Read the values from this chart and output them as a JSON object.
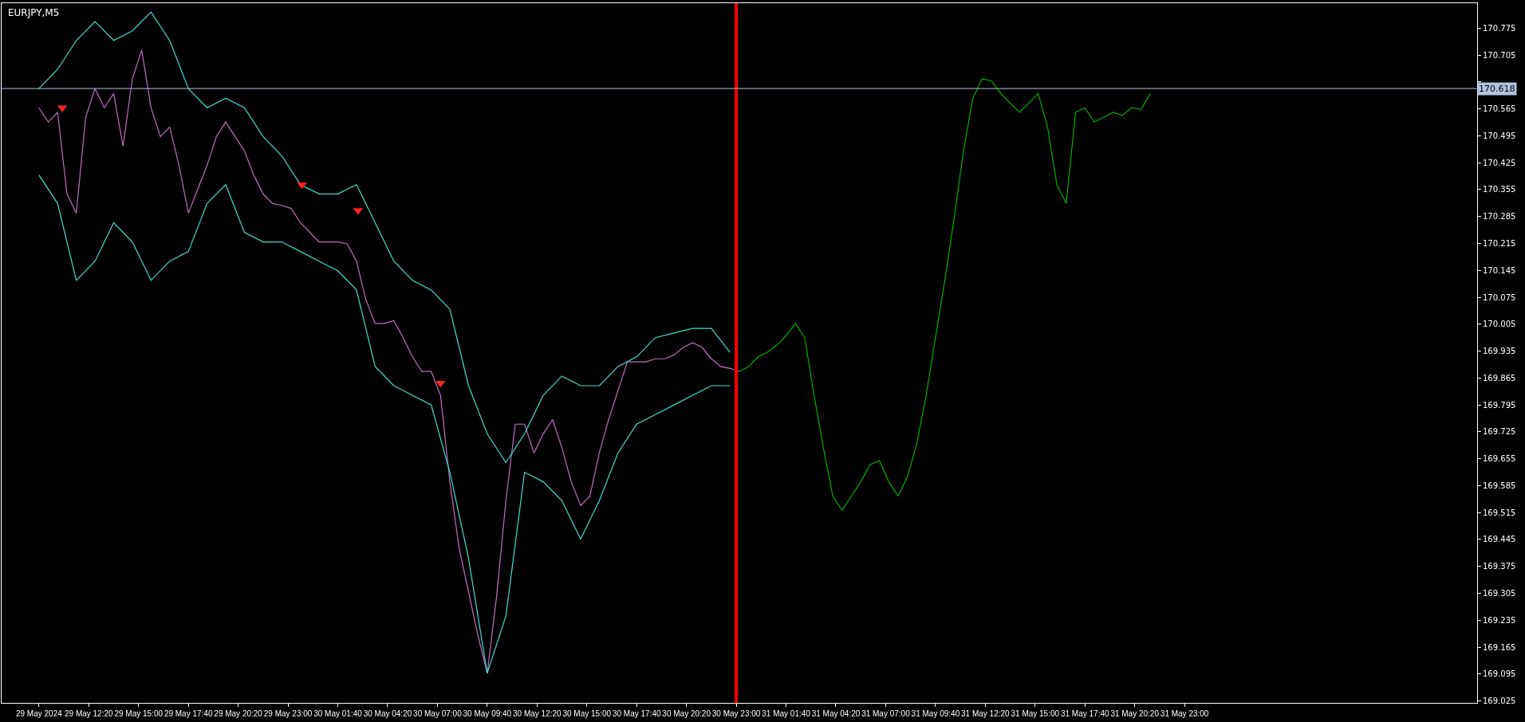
{
  "chart_data": {
    "type": "line",
    "title": "EURJPY,M5",
    "grid": false,
    "xlim": [
      "2024-05-29T07:40",
      "2024-06-01T14:40"
    ],
    "xticks": [
      {
        "value": "2024-05-29T09:40",
        "label": "29 May 2024"
      },
      {
        "value": "2024-05-29T12:20",
        "label": "29 May 12:20"
      },
      {
        "value": "2024-05-29T15:00",
        "label": "29 May 15:00"
      },
      {
        "value": "2024-05-29T17:40",
        "label": "29 May 17:40"
      },
      {
        "value": "2024-05-29T20:20",
        "label": "29 May 20:20"
      },
      {
        "value": "2024-05-29T23:00",
        "label": "29 May 23:00"
      },
      {
        "value": "2024-05-30T01:40",
        "label": "30 May 01:40"
      },
      {
        "value": "2024-05-30T04:20",
        "label": "30 May 04:20"
      },
      {
        "value": "2024-05-30T07:00",
        "label": "30 May 07:00"
      },
      {
        "value": "2024-05-30T09:40",
        "label": "30 May 09:40"
      },
      {
        "value": "2024-05-30T12:20",
        "label": "30 May 12:20"
      },
      {
        "value": "2024-05-30T15:00",
        "label": "30 May 15:00"
      },
      {
        "value": "2024-05-30T17:40",
        "label": "30 May 17:40"
      },
      {
        "value": "2024-05-30T20:20",
        "label": "30 May 20:20"
      },
      {
        "value": "2024-05-30T23:00",
        "label": "30 May 23:00"
      },
      {
        "value": "2024-05-31T01:40",
        "label": "31 May 01:40"
      },
      {
        "value": "2024-05-31T04:20",
        "label": "31 May 04:20"
      },
      {
        "value": "2024-05-31T07:00",
        "label": "31 May 07:00"
      },
      {
        "value": "2024-05-31T09:40",
        "label": "31 May 09:40"
      },
      {
        "value": "2024-05-31T12:20",
        "label": "31 May 12:20"
      },
      {
        "value": "2024-05-31T15:00",
        "label": "31 May 15:00"
      },
      {
        "value": "2024-05-31T17:40",
        "label": "31 May 17:40"
      },
      {
        "value": "2024-05-31T20:20",
        "label": "31 May 20:20"
      },
      {
        "value": "2024-05-31T23:00",
        "label": "31 May 23:00"
      }
    ],
    "ylim": [
      169.02,
      170.84
    ],
    "yticks": [
      170.775,
      170.705,
      {
        "value": 170.635,
        "label": null
      },
      170.565,
      170.495,
      170.425,
      170.355,
      170.285,
      170.215,
      170.145,
      170.075,
      170.005,
      169.935,
      169.865,
      169.795,
      169.725,
      169.655,
      169.585,
      169.515,
      169.445,
      169.375,
      169.305,
      169.235,
      169.165,
      169.095,
      169.025
    ],
    "series": [
      {
        "color": "#c070c0",
        "x": [
          "2024-05-29T09:40",
          "2024-05-29T10:10",
          "2024-05-29T10:40",
          "2024-05-29T11:10",
          "2024-05-29T11:40",
          "2024-05-29T12:10",
          "2024-05-29T12:40",
          "2024-05-29T13:10",
          "2024-05-29T13:40",
          "2024-05-29T14:10",
          "2024-05-29T14:40",
          "2024-05-29T15:10",
          "2024-05-29T15:40",
          "2024-05-29T16:10",
          "2024-05-29T16:40",
          "2024-05-29T17:10",
          "2024-05-29T17:40",
          "2024-05-29T18:10",
          "2024-05-29T18:40",
          "2024-05-29T19:10",
          "2024-05-29T19:40",
          "2024-05-29T20:10",
          "2024-05-29T20:40",
          "2024-05-29T21:10",
          "2024-05-29T21:40",
          "2024-05-29T22:10",
          "2024-05-29T22:40",
          "2024-05-29T23:10",
          "2024-05-29T23:40",
          "2024-05-30T00:10",
          "2024-05-30T00:40",
          "2024-05-30T01:10",
          "2024-05-30T01:40",
          "2024-05-30T02:10",
          "2024-05-30T02:40",
          "2024-05-30T03:10",
          "2024-05-30T03:40",
          "2024-05-30T04:10",
          "2024-05-30T04:40",
          "2024-05-30T05:10",
          "2024-05-30T05:40",
          "2024-05-30T06:10",
          "2024-05-30T06:40",
          "2024-05-30T07:10",
          "2024-05-30T07:40",
          "2024-05-30T08:10",
          "2024-05-30T08:40",
          "2024-05-30T09:10",
          "2024-05-30T09:40",
          "2024-05-30T10:10",
          "2024-05-30T10:40",
          "2024-05-30T11:10",
          "2024-05-30T11:40",
          "2024-05-30T12:10",
          "2024-05-30T12:40",
          "2024-05-30T13:10",
          "2024-05-30T13:40",
          "2024-05-30T14:10",
          "2024-05-30T14:40",
          "2024-05-30T15:10",
          "2024-05-30T15:40",
          "2024-05-30T16:10",
          "2024-05-30T16:40",
          "2024-05-30T17:10",
          "2024-05-30T17:40",
          "2024-05-30T18:10",
          "2024-05-30T18:40",
          "2024-05-30T19:10",
          "2024-05-30T19:40",
          "2024-05-30T20:10",
          "2024-05-30T20:40",
          "2024-05-30T21:10",
          "2024-05-30T21:40",
          "2024-05-30T22:10",
          "2024-05-30T22:40",
          "2024-05-30T23:10"
        ],
        "values": [
          170.568,
          170.531,
          170.556,
          170.344,
          170.294,
          170.543,
          170.618,
          170.568,
          170.605,
          170.468,
          170.643,
          170.718,
          170.568,
          170.493,
          170.518,
          170.418,
          170.294,
          170.356,
          170.418,
          170.493,
          170.531,
          170.493,
          170.456,
          170.393,
          170.344,
          170.319,
          170.314,
          170.306,
          170.269,
          170.244,
          170.219,
          170.219,
          170.219,
          170.214,
          170.169,
          170.069,
          170.007,
          170.007,
          170.014,
          169.97,
          169.92,
          169.882,
          169.882,
          169.82,
          169.595,
          169.421,
          169.309,
          169.196,
          169.097,
          169.296,
          169.546,
          169.745,
          169.745,
          169.67,
          169.72,
          169.757,
          169.683,
          169.595,
          169.533,
          169.558,
          169.67,
          169.757,
          169.832,
          169.907,
          169.907,
          169.907,
          169.915,
          169.915,
          169.925,
          169.945,
          169.957,
          169.945,
          169.915,
          169.895,
          169.89,
          169.882
        ]
      },
      {
        "color": "#00b000",
        "x": [
          "2024-05-30T23:10",
          "2024-05-30T23:40",
          "2024-05-31T00:10",
          "2024-05-31T00:40",
          "2024-05-31T01:10",
          "2024-05-31T01:40",
          "2024-05-31T02:10",
          "2024-05-31T02:40",
          "2024-05-31T03:10",
          "2024-05-31T03:40",
          "2024-05-31T04:10",
          "2024-05-31T04:40",
          "2024-05-31T05:10",
          "2024-05-31T05:40",
          "2024-05-31T06:10",
          "2024-05-31T06:40",
          "2024-05-31T07:10",
          "2024-05-31T07:40",
          "2024-05-31T08:10",
          "2024-05-31T08:40",
          "2024-05-31T09:10",
          "2024-05-31T09:40",
          "2024-05-31T10:10",
          "2024-05-31T10:40",
          "2024-05-31T11:10",
          "2024-05-31T11:40",
          "2024-05-31T12:10",
          "2024-05-31T12:40",
          "2024-05-31T13:10",
          "2024-05-31T13:40",
          "2024-05-31T14:10",
          "2024-05-31T14:40",
          "2024-05-31T15:10",
          "2024-05-31T15:40",
          "2024-05-31T16:10",
          "2024-05-31T16:40",
          "2024-05-31T17:10",
          "2024-05-31T17:40",
          "2024-05-31T18:10",
          "2024-05-31T18:40",
          "2024-05-31T19:10",
          "2024-05-31T19:40",
          "2024-05-31T20:10",
          "2024-05-31T20:40",
          "2024-05-31T21:10"
        ],
        "values": [
          169.882,
          169.895,
          169.92,
          169.932,
          169.95,
          169.975,
          170.007,
          169.97,
          169.82,
          169.683,
          169.558,
          169.521,
          169.558,
          169.595,
          169.64,
          169.65,
          169.595,
          169.558,
          169.608,
          169.695,
          169.82,
          169.97,
          170.119,
          170.281,
          170.456,
          170.593,
          170.643,
          170.638,
          170.605,
          170.58,
          170.556,
          170.58,
          170.605,
          170.518,
          170.368,
          170.319,
          170.556,
          170.568,
          170.531,
          170.543,
          170.556,
          170.548,
          170.568,
          170.563,
          170.605
        ]
      },
      {
        "color": "#40e0d0",
        "x": [
          "2024-05-29T09:40",
          "2024-05-29T10:40",
          "2024-05-29T11:40",
          "2024-05-29T12:40",
          "2024-05-29T13:40",
          "2024-05-29T14:40",
          "2024-05-29T15:40",
          "2024-05-29T16:40",
          "2024-05-29T17:40",
          "2024-05-29T18:40",
          "2024-05-29T19:40",
          "2024-05-29T20:40",
          "2024-05-29T21:40",
          "2024-05-29T22:40",
          "2024-05-29T23:40",
          "2024-05-30T00:40",
          "2024-05-30T01:40",
          "2024-05-30T02:40",
          "2024-05-30T03:40",
          "2024-05-30T04:40",
          "2024-05-30T05:40",
          "2024-05-30T06:40",
          "2024-05-30T07:40",
          "2024-05-30T08:40",
          "2024-05-30T09:40",
          "2024-05-30T10:40",
          "2024-05-30T11:40",
          "2024-05-30T12:40",
          "2024-05-30T13:40",
          "2024-05-30T14:40",
          "2024-05-30T15:40",
          "2024-05-30T16:40",
          "2024-05-30T17:40",
          "2024-05-30T18:40",
          "2024-05-30T19:40",
          "2024-05-30T20:40",
          "2024-05-30T21:40",
          "2024-05-30T22:40"
        ],
        "values": [
          170.618,
          170.668,
          170.743,
          170.792,
          170.743,
          170.768,
          170.817,
          170.743,
          170.618,
          170.568,
          170.593,
          170.568,
          170.493,
          170.443,
          170.368,
          170.344,
          170.344,
          170.368,
          170.269,
          170.169,
          170.119,
          170.094,
          170.044,
          169.845,
          169.72,
          169.645,
          169.72,
          169.82,
          169.87,
          169.845,
          169.845,
          169.895,
          169.92,
          169.97,
          169.982,
          169.994,
          169.994,
          169.932
        ]
      },
      {
        "color": "#40e0d0",
        "x": [
          "2024-05-29T09:40",
          "2024-05-29T10:40",
          "2024-05-29T11:40",
          "2024-05-29T12:40",
          "2024-05-29T13:40",
          "2024-05-29T14:40",
          "2024-05-29T15:40",
          "2024-05-29T16:40",
          "2024-05-29T17:40",
          "2024-05-29T18:40",
          "2024-05-29T19:40",
          "2024-05-29T20:40",
          "2024-05-29T21:40",
          "2024-05-29T22:40",
          "2024-05-29T23:40",
          "2024-05-30T00:40",
          "2024-05-30T01:40",
          "2024-05-30T02:40",
          "2024-05-30T03:40",
          "2024-05-30T04:40",
          "2024-05-30T05:40",
          "2024-05-30T06:40",
          "2024-05-30T07:40",
          "2024-05-30T08:40",
          "2024-05-30T09:40",
          "2024-05-30T10:40",
          "2024-05-30T11:40",
          "2024-05-30T12:40",
          "2024-05-30T13:40",
          "2024-05-30T14:40",
          "2024-05-30T15:40",
          "2024-05-30T16:40",
          "2024-05-30T17:40",
          "2024-05-30T18:40",
          "2024-05-30T19:40",
          "2024-05-30T20:40",
          "2024-05-30T21:40",
          "2024-05-30T22:40"
        ],
        "values": [
          170.393,
          170.319,
          170.119,
          170.169,
          170.269,
          170.219,
          170.119,
          170.169,
          170.194,
          170.319,
          170.368,
          170.244,
          170.219,
          170.219,
          170.194,
          170.169,
          170.144,
          170.094,
          169.895,
          169.845,
          169.82,
          169.795,
          169.62,
          169.396,
          169.097,
          169.246,
          169.62,
          169.595,
          169.546,
          169.446,
          169.546,
          169.67,
          169.745,
          169.77,
          169.795,
          169.82,
          169.845,
          169.845
        ]
      },
      {
        "type": "scatter",
        "marker": "triangle",
        "color": "#ff2020",
        "x": [
          "2024-05-29T10:55",
          "2024-05-29T23:45",
          "2024-05-30T02:45",
          "2024-05-30T07:10"
        ],
        "values": [
          170.568,
          170.368,
          170.301,
          169.852
        ]
      }
    ],
    "ref_lines": [
      {
        "axis": "x",
        "value": "2024-05-30T23:00",
        "color": "#ff0000"
      },
      {
        "axis": "y",
        "value": 170.618,
        "label": "170.618",
        "color": "#b0c4de"
      }
    ]
  }
}
